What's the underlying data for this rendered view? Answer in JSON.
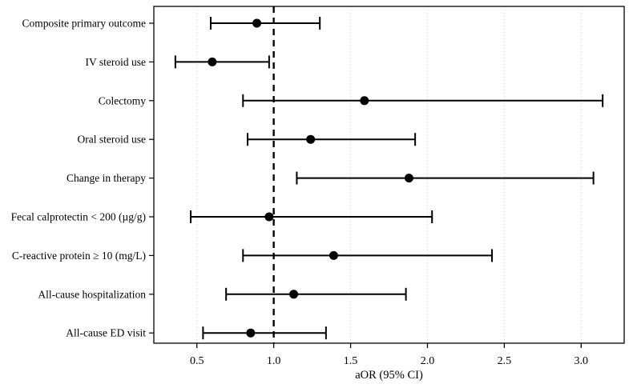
{
  "chart_data": {
    "type": "scatter",
    "subtype": "forest-plot",
    "title": "",
    "xlabel": "aOR (95% CI)",
    "ylabel": "",
    "reference_line_x": 1.0,
    "xlim": [
      0.22,
      3.28
    ],
    "x_ticks": [
      {
        "value": 0.5,
        "label": "0.5"
      },
      {
        "value": 1.0,
        "label": "1.0"
      },
      {
        "value": 1.5,
        "label": "1.5"
      },
      {
        "value": 2.0,
        "label": "2.0"
      },
      {
        "value": 2.5,
        "label": "2.5"
      },
      {
        "value": 3.0,
        "label": "3.0"
      }
    ],
    "grid": "vertical-dotted",
    "legend": "none",
    "rows": [
      {
        "label": "Composite primary outcome",
        "aor": 0.89,
        "ci_low": 0.59,
        "ci_high": 1.3
      },
      {
        "label": "IV steroid use",
        "aor": 0.6,
        "ci_low": 0.36,
        "ci_high": 0.97
      },
      {
        "label": "Colectomy",
        "aor": 1.59,
        "ci_low": 0.8,
        "ci_high": 3.14
      },
      {
        "label": "Oral steroid use",
        "aor": 1.24,
        "ci_low": 0.83,
        "ci_high": 1.92
      },
      {
        "label": "Change in therapy",
        "aor": 1.88,
        "ci_low": 1.15,
        "ci_high": 3.08
      },
      {
        "label": "Fecal calprotectin < 200 (µg/g)",
        "aor": 0.97,
        "ci_low": 0.46,
        "ci_high": 2.03
      },
      {
        "label": "C-reactive protein ≥ 10 (mg/L)",
        "aor": 1.39,
        "ci_low": 0.8,
        "ci_high": 2.42
      },
      {
        "label": "All-cause hospitalization",
        "aor": 1.13,
        "ci_low": 0.69,
        "ci_high": 1.86
      },
      {
        "label": "All-cause ED visit",
        "aor": 0.85,
        "ci_low": 0.54,
        "ci_high": 1.34
      }
    ],
    "colors": {
      "marker": "#000000",
      "error_bar": "#000000",
      "reference_line": "#000000",
      "gridline": "#d4d4d4",
      "panel_border": "#000000",
      "text": "#000000",
      "background": "#ffffff"
    }
  }
}
